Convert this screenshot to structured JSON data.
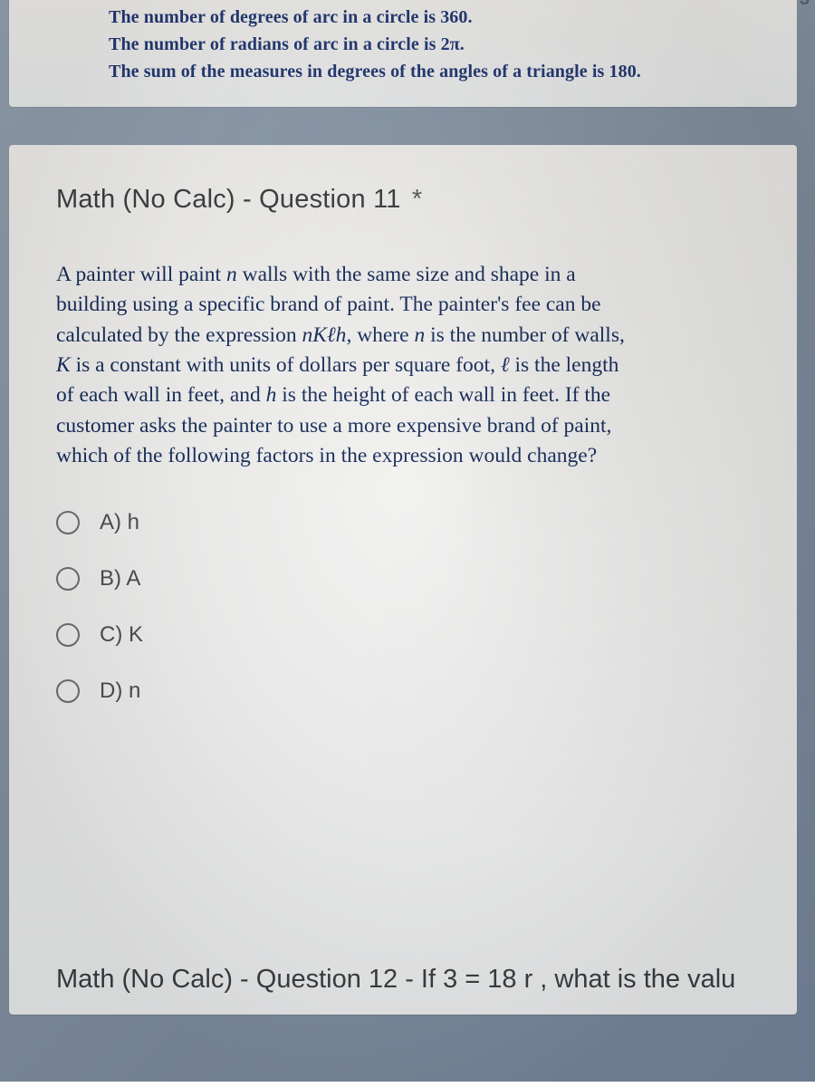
{
  "colors": {
    "screen_bg_from": "#9aa8b8",
    "screen_bg_to": "#7a8aa2",
    "card_bg": "#f6f7f8",
    "blue_text": "#233a7a",
    "body_blue": "#122a5c",
    "title_gray": "#3b3f42",
    "radio_border": "#6d7276",
    "choice_gray": "#4a4f52"
  },
  "top_corner_number": "3",
  "info_box": {
    "lines": [
      "The number of degrees of arc in a circle is 360.",
      "The number of radians of arc in a circle is 2π.",
      "The sum of the measures in degrees of the angles of a triangle is 180."
    ],
    "font_size": 20,
    "font_weight": 700
  },
  "question": {
    "title_prefix": "Math (No Calc) - Question 11",
    "required_marker": "*",
    "title_font_size": 29,
    "body_html": "A painter will paint <span class=\"it\">n</span> walls with the same size and shape in a building using a specific brand of paint. The painter's fee can be calculated by the expression <span class=\"it\">nKℓh</span>, where <span class=\"it\">n</span> is the number of walls, <span class=\"it\">K</span> is a constant with units of dollars per square foot, <span class=\"it\">ℓ</span> is the length of each wall in feet, and <span class=\"it\">h</span> is the height of each wall in feet. If the customer asks the painter to use a more expensive brand of paint, which of the following factors in the expression would change?",
    "body_font_size": 23.5,
    "choices": [
      {
        "id": "a",
        "label": "A) h"
      },
      {
        "id": "b",
        "label": "B) A"
      },
      {
        "id": "c",
        "label": "C) K"
      },
      {
        "id": "d",
        "label": "D) n"
      }
    ],
    "choice_font_size": 24
  },
  "next_question_fragment": "Math (No Calc) - Question 12 - If 3 = 18 r , what is the valu"
}
